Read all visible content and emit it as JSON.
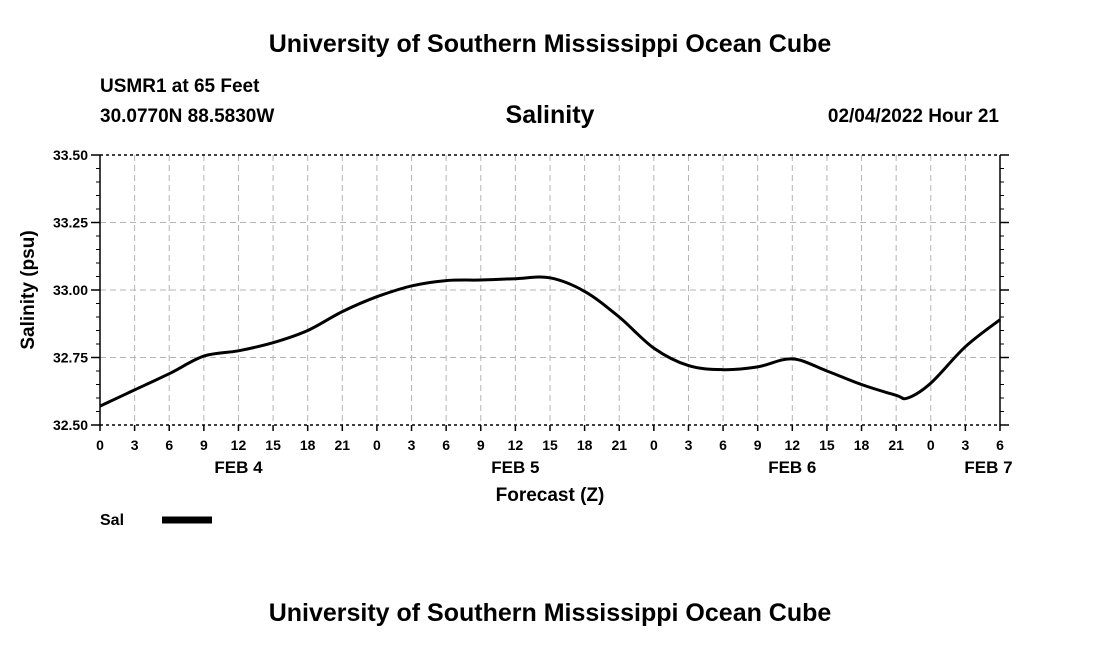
{
  "header": {
    "title": "University of Southern Mississippi Ocean Cube",
    "station": "USMR1 at 65 Feet",
    "coords": "30.0770N  88.5830W",
    "chart_title": "Salinity",
    "datestamp": "02/04/2022 Hour 21"
  },
  "footer": {
    "title": "University of Southern Mississippi Ocean Cube"
  },
  "chart_data": {
    "type": "line",
    "title": "Salinity",
    "xlabel": "Forecast (Z)",
    "ylabel": "Salinity (psu)",
    "ylim": [
      32.5,
      33.5
    ],
    "yticks": [
      "33.50",
      "33.25",
      "33.00",
      "32.75",
      "32.50"
    ],
    "ytick_values": [
      33.5,
      33.25,
      33.0,
      32.75,
      32.5
    ],
    "xlim": [
      0,
      78
    ],
    "xtick_values": [
      0,
      3,
      6,
      9,
      12,
      15,
      18,
      21,
      24,
      27,
      30,
      33,
      36,
      39,
      42,
      45,
      48,
      51,
      54,
      57,
      60,
      63,
      66,
      69,
      72,
      75,
      78
    ],
    "xticks": [
      "0",
      "3",
      "6",
      "9",
      "12",
      "15",
      "18",
      "21",
      "0",
      "3",
      "6",
      "9",
      "12",
      "15",
      "18",
      "21",
      "0",
      "3",
      "6",
      "9",
      "12",
      "15",
      "18",
      "21",
      "0",
      "3",
      "6"
    ],
    "day_labels": [
      {
        "label": "FEB 4",
        "hour": 12
      },
      {
        "label": "FEB 5",
        "hour": 36
      },
      {
        "label": "FEB 6",
        "hour": 60
      },
      {
        "label": "FEB 7",
        "hour": 77
      }
    ],
    "grid": true,
    "series": [
      {
        "name": "Sal",
        "color": "#000000",
        "x": [
          0,
          3,
          6,
          9,
          12,
          15,
          18,
          21,
          24,
          27,
          30,
          33,
          36,
          39,
          42,
          45,
          48,
          51,
          54,
          57,
          60,
          63,
          66,
          69,
          70,
          72,
          75,
          78
        ],
        "values": [
          32.57,
          32.63,
          32.69,
          32.755,
          32.775,
          32.805,
          32.85,
          32.92,
          32.975,
          33.015,
          33.035,
          33.037,
          33.042,
          33.045,
          32.995,
          32.9,
          32.785,
          32.72,
          32.705,
          32.715,
          32.745,
          32.7,
          32.65,
          32.61,
          32.6,
          32.655,
          32.79,
          32.89
        ]
      }
    ],
    "legend": {
      "position": "bottom-left",
      "label": "Sal"
    }
  }
}
